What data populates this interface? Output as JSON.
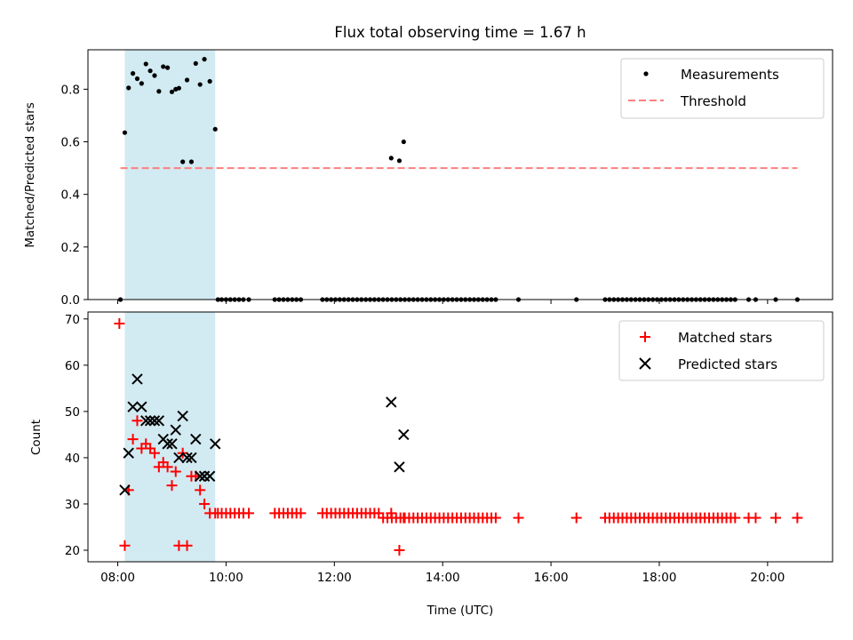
{
  "figure_title": "Flux total observing time = 1.67 h",
  "chart_data": [
    {
      "type": "scatter",
      "panel": "top",
      "title": "Flux total observing time = 1.67 h",
      "xlabel": "",
      "ylabel": "Matched/Predicted stars",
      "xlim": [
        7.45,
        21.2
      ],
      "ylim": [
        0,
        0.95
      ],
      "yticks": [
        0.0,
        0.2,
        0.4,
        0.6,
        0.8
      ],
      "ytick_labels": [
        "0.0",
        "0.2",
        "0.4",
        "0.6",
        "0.8"
      ],
      "grid": false,
      "legend_position": "top-right",
      "shaded_interval": {
        "x": [
          8.13,
          9.8
        ],
        "color": "#add8e6"
      },
      "series": [
        {
          "name": "Measurements",
          "kind": "scatter",
          "color": "#000000",
          "x": [
            8.05,
            8.13,
            8.2,
            8.28,
            8.36,
            8.44,
            8.52,
            8.6,
            8.68,
            8.76,
            8.84,
            8.92,
            9.0,
            9.07,
            9.13,
            9.2,
            9.28,
            9.36,
            9.44,
            9.52,
            9.6,
            9.7,
            9.8,
            9.85,
            9.92,
            10.0,
            10.08,
            10.16,
            10.24,
            10.32,
            10.42,
            10.9,
            10.98,
            11.06,
            11.14,
            11.22,
            11.3,
            11.38,
            11.78,
            11.86,
            11.94,
            12.02,
            12.1,
            12.18,
            12.26,
            12.34,
            12.42,
            12.5,
            12.58,
            12.66,
            12.74,
            12.82,
            12.9,
            12.98,
            13.06,
            13.14,
            13.22,
            13.3,
            13.38,
            13.46,
            13.54,
            13.62,
            13.7,
            13.78,
            13.86,
            13.94,
            14.02,
            14.1,
            14.18,
            14.26,
            14.34,
            14.42,
            14.5,
            14.58,
            14.66,
            14.74,
            14.82,
            14.9,
            14.98,
            15.4,
            16.47,
            17.0,
            17.08,
            17.16,
            17.24,
            17.32,
            17.4,
            17.48,
            17.56,
            17.64,
            17.72,
            17.8,
            17.88,
            17.96,
            18.04,
            18.12,
            18.2,
            18.28,
            18.36,
            18.44,
            18.52,
            18.6,
            18.68,
            18.76,
            18.84,
            18.92,
            19.0,
            19.08,
            19.16,
            19.24,
            19.32,
            19.4,
            19.65,
            19.78,
            20.15,
            20.55,
            13.05,
            13.2,
            13.28
          ],
          "y": [
            0.0,
            0.635,
            0.805,
            0.86,
            0.84,
            0.822,
            0.896,
            0.87,
            0.852,
            0.792,
            0.886,
            0.882,
            0.79,
            0.8,
            0.804,
            0.524,
            0.835,
            0.524,
            0.898,
            0.818,
            0.914,
            0.83,
            0.648,
            0.0,
            0.0,
            0.0,
            0.0,
            0.0,
            0.0,
            0.0,
            0.0,
            0.0,
            0.0,
            0.0,
            0.0,
            0.0,
            0.0,
            0.0,
            0.0,
            0.0,
            0.0,
            0.0,
            0.0,
            0.0,
            0.0,
            0.0,
            0.0,
            0.0,
            0.0,
            0.0,
            0.0,
            0.0,
            0.0,
            0.0,
            0.0,
            0.0,
            0.0,
            0.0,
            0.0,
            0.0,
            0.0,
            0.0,
            0.0,
            0.0,
            0.0,
            0.0,
            0.0,
            0.0,
            0.0,
            0.0,
            0.0,
            0.0,
            0.0,
            0.0,
            0.0,
            0.0,
            0.0,
            0.0,
            0.0,
            0.0,
            0.0,
            0.0,
            0.0,
            0.0,
            0.0,
            0.0,
            0.0,
            0.0,
            0.0,
            0.0,
            0.0,
            0.0,
            0.0,
            0.0,
            0.0,
            0.0,
            0.0,
            0.0,
            0.0,
            0.0,
            0.0,
            0.0,
            0.0,
            0.0,
            0.0,
            0.0,
            0.0,
            0.0,
            0.0,
            0.0,
            0.0,
            0.0,
            0.0,
            0.0,
            0.0,
            0.0,
            0.538,
            0.528,
            0.6
          ]
        },
        {
          "name": "Threshold",
          "kind": "dashed-line",
          "color": "#ff7f7f",
          "x": [
            8.05,
            20.55
          ],
          "y": [
            0.5,
            0.5
          ]
        }
      ]
    },
    {
      "type": "scatter",
      "panel": "bottom",
      "xlabel": "Time (UTC)",
      "ylabel": "Count",
      "xlim": [
        7.45,
        21.2
      ],
      "ylim": [
        17.5,
        71.5
      ],
      "xticks": [
        8,
        10,
        12,
        14,
        16,
        18,
        20
      ],
      "xtick_labels": [
        "08:00",
        "10:00",
        "12:00",
        "14:00",
        "16:00",
        "18:00",
        "20:00"
      ],
      "yticks": [
        20,
        30,
        40,
        50,
        60,
        70
      ],
      "ytick_labels": [
        "20",
        "30",
        "40",
        "50",
        "60",
        "70"
      ],
      "grid": false,
      "legend_position": "top-right",
      "shaded_interval": {
        "x": [
          8.13,
          9.8
        ],
        "color": "#add8e6"
      },
      "series": [
        {
          "name": "Matched stars",
          "kind": "plus",
          "color": "#ff0000",
          "x": [
            8.03,
            8.13,
            8.2,
            8.28,
            8.36,
            8.44,
            8.52,
            8.6,
            8.68,
            8.76,
            8.84,
            8.92,
            9.0,
            9.07,
            9.13,
            9.2,
            9.28,
            9.36,
            9.44,
            9.52,
            9.6,
            9.7,
            9.8,
            9.85,
            9.92,
            10.0,
            10.08,
            10.16,
            10.24,
            10.32,
            10.42,
            10.9,
            10.98,
            11.06,
            11.14,
            11.22,
            11.3,
            11.38,
            11.78,
            11.86,
            11.94,
            12.02,
            12.1,
            12.18,
            12.26,
            12.34,
            12.42,
            12.5,
            12.58,
            12.66,
            12.74,
            12.82,
            12.9,
            12.98,
            13.06,
            13.14,
            13.22,
            13.3,
            13.38,
            13.46,
            13.54,
            13.62,
            13.7,
            13.78,
            13.86,
            13.94,
            14.02,
            14.1,
            14.18,
            14.26,
            14.34,
            14.42,
            14.5,
            14.58,
            14.66,
            14.74,
            14.82,
            14.9,
            14.98,
            15.4,
            16.47,
            17.0,
            17.08,
            17.16,
            17.24,
            17.32,
            17.4,
            17.48,
            17.56,
            17.64,
            17.72,
            17.8,
            17.88,
            17.96,
            18.04,
            18.12,
            18.2,
            18.28,
            18.36,
            18.44,
            18.52,
            18.6,
            18.68,
            18.76,
            18.84,
            18.92,
            19.0,
            19.08,
            19.16,
            19.24,
            19.32,
            19.4,
            19.65,
            19.78,
            20.15,
            20.55,
            13.05,
            13.2,
            13.28
          ],
          "y": [
            69,
            21,
            33,
            44,
            48,
            42,
            43,
            42,
            41,
            38,
            39,
            38,
            34,
            37,
            21,
            41,
            21,
            36,
            36,
            33,
            30,
            28,
            28,
            28,
            28,
            28,
            28,
            28,
            28,
            28,
            28,
            28,
            28,
            28,
            28,
            28,
            28,
            28,
            28,
            28,
            28,
            28,
            28,
            28,
            28,
            28,
            28,
            28,
            28,
            28,
            28,
            28,
            27,
            27,
            27,
            27,
            27,
            27,
            27,
            27,
            27,
            27,
            27,
            27,
            27,
            27,
            27,
            27,
            27,
            27,
            27,
            27,
            27,
            27,
            27,
            27,
            27,
            27,
            27,
            27,
            27,
            27,
            27,
            27,
            27,
            27,
            27,
            27,
            27,
            27,
            27,
            27,
            27,
            27,
            27,
            27,
            27,
            27,
            27,
            27,
            27,
            27,
            27,
            27,
            27,
            27,
            27,
            27,
            27,
            27,
            27,
            27,
            27,
            27,
            27,
            27,
            28,
            20,
            27
          ]
        },
        {
          "name": "Predicted stars",
          "kind": "x",
          "color": "#000000",
          "x": [
            8.13,
            8.2,
            8.28,
            8.36,
            8.44,
            8.52,
            8.6,
            8.68,
            8.76,
            8.84,
            8.92,
            9.0,
            9.07,
            9.13,
            9.2,
            9.28,
            9.36,
            9.44,
            9.52,
            9.6,
            9.7,
            9.8,
            13.05,
            13.2,
            13.28
          ],
          "y": [
            33,
            41,
            51,
            57,
            51,
            48,
            48,
            48,
            48,
            44,
            43,
            43,
            46,
            40,
            49,
            40,
            40,
            44,
            36,
            36,
            36,
            43,
            52,
            38,
            45
          ]
        }
      ]
    }
  ]
}
